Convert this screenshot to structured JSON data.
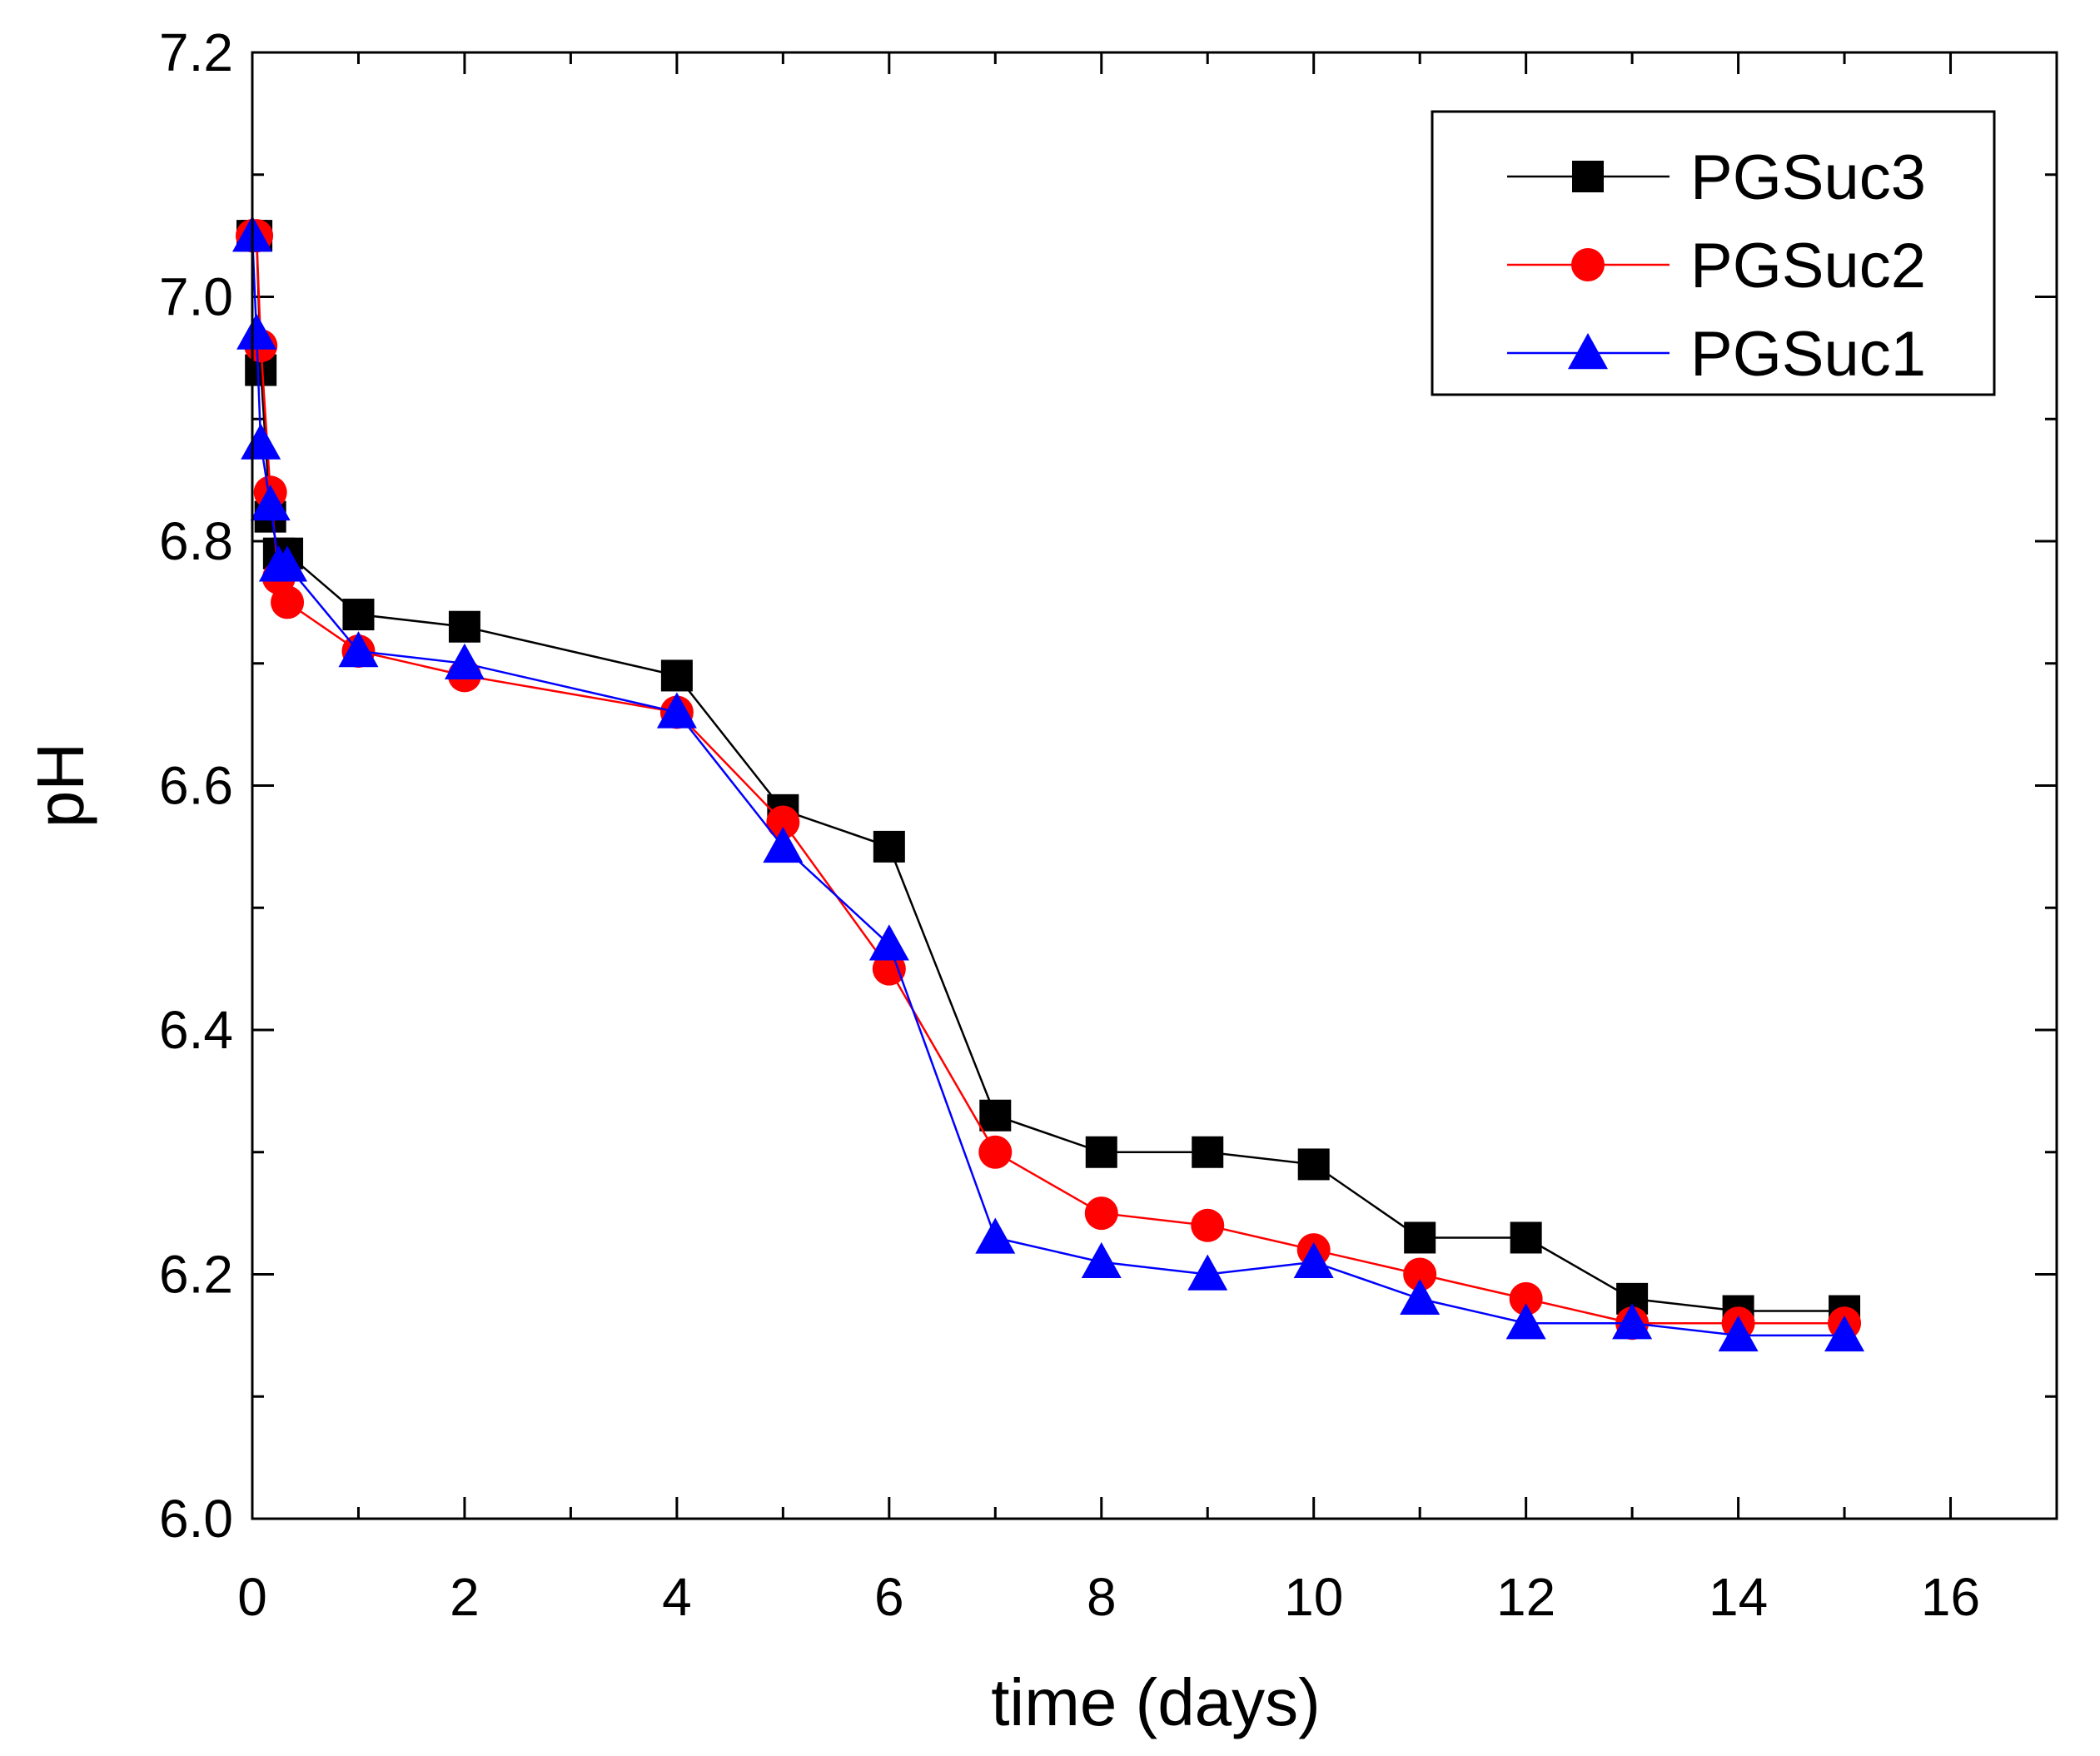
{
  "chart_data": {
    "type": "line",
    "title": "",
    "xlabel": "time (days)",
    "ylabel": "pH",
    "xlim": [
      0,
      17
    ],
    "ylim": [
      6.0,
      7.2
    ],
    "xticks": [
      0,
      2,
      4,
      6,
      8,
      10,
      12,
      14,
      16
    ],
    "xtick_labels": [
      "0",
      "2",
      "4",
      "6",
      "8",
      "10",
      "12",
      "14",
      "16"
    ],
    "yticks": [
      6.0,
      6.2,
      6.4,
      6.6,
      6.8,
      7.0,
      7.2
    ],
    "ytick_labels": [
      "6.0",
      "6.2",
      "6.4",
      "6.6",
      "6.8",
      "7.0",
      "7.2"
    ],
    "grid": false,
    "legend_position": "top-right",
    "series": [
      {
        "name": "PGSuc3",
        "color": "#000000",
        "marker": "square",
        "x": [
          0,
          0.04,
          0.08,
          0.17,
          0.25,
          0.33,
          1,
          2,
          4,
          5,
          6,
          7,
          8,
          9,
          10,
          11,
          12,
          13,
          14,
          15
        ],
        "y": [
          7.05,
          7.05,
          6.94,
          6.82,
          6.79,
          6.79,
          6.74,
          6.73,
          6.69,
          6.58,
          6.55,
          6.33,
          6.3,
          6.3,
          6.29,
          6.23,
          6.23,
          6.18,
          6.17,
          6.17
        ]
      },
      {
        "name": "PGSuc2",
        "color": "#ff0000",
        "marker": "circle",
        "x": [
          0,
          0.04,
          0.08,
          0.17,
          0.25,
          0.33,
          1,
          2,
          4,
          5,
          6,
          7,
          8,
          9,
          10,
          11,
          12,
          13,
          14,
          15
        ],
        "y": [
          7.05,
          7.05,
          6.96,
          6.84,
          6.77,
          6.75,
          6.71,
          6.69,
          6.66,
          6.57,
          6.45,
          6.3,
          6.25,
          6.24,
          6.22,
          6.2,
          6.18,
          6.16,
          6.16,
          6.16
        ]
      },
      {
        "name": "PGSuc1",
        "color": "#0000ff",
        "marker": "triangle",
        "x": [
          0,
          0.04,
          0.08,
          0.17,
          0.25,
          0.33,
          1,
          2,
          4,
          5,
          6,
          7,
          8,
          9,
          10,
          11,
          12,
          13,
          14,
          15
        ],
        "y": [
          7.05,
          6.97,
          6.88,
          6.83,
          6.78,
          6.78,
          6.71,
          6.7,
          6.66,
          6.55,
          6.47,
          6.23,
          6.21,
          6.2,
          6.21,
          6.18,
          6.16,
          6.16,
          6.15,
          6.15
        ]
      }
    ]
  }
}
